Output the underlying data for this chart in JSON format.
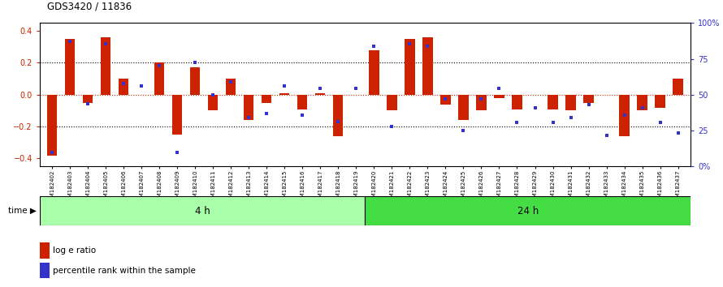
{
  "title": "GDS3420 / 11836",
  "samples": [
    "GSM182402",
    "GSM182403",
    "GSM182404",
    "GSM182405",
    "GSM182406",
    "GSM182407",
    "GSM182408",
    "GSM182409",
    "GSM182410",
    "GSM182411",
    "GSM182412",
    "GSM182413",
    "GSM182414",
    "GSM182415",
    "GSM182416",
    "GSM182417",
    "GSM182418",
    "GSM182419",
    "GSM182420",
    "GSM182421",
    "GSM182422",
    "GSM182423",
    "GSM182424",
    "GSM182425",
    "GSM182426",
    "GSM182427",
    "GSM182428",
    "GSM182429",
    "GSM182430",
    "GSM182431",
    "GSM182432",
    "GSM182433",
    "GSM182434",
    "GSM182435",
    "GSM182436",
    "GSM182437"
  ],
  "log_e_ratio": [
    -0.38,
    0.35,
    -0.05,
    0.36,
    0.1,
    0.0,
    0.2,
    -0.25,
    0.17,
    -0.1,
    0.1,
    -0.16,
    -0.05,
    0.01,
    -0.09,
    0.01,
    -0.26,
    0.0,
    0.28,
    -0.1,
    0.35,
    0.36,
    -0.06,
    -0.16,
    -0.1,
    -0.02,
    -0.09,
    0.0,
    -0.09,
    -0.1,
    -0.05,
    0.0,
    -0.26,
    -0.1,
    -0.08,
    0.1
  ],
  "percentile_rank": [
    5,
    92,
    43,
    90,
    59,
    57,
    73,
    5,
    75,
    50,
    60,
    32,
    35,
    57,
    34,
    55,
    29,
    55,
    88,
    25,
    90,
    88,
    47,
    22,
    47,
    55,
    28,
    40,
    28,
    32,
    42,
    18,
    34,
    40,
    28,
    20
  ],
  "group_boundary": 18,
  "groups": [
    "4 h",
    "24 h"
  ],
  "group_color_light": "#AAFFAA",
  "group_color_dark": "#44DD44",
  "bar_color": "#CC2200",
  "dot_color": "#3333CC",
  "ylim": [
    -0.45,
    0.45
  ],
  "yticks": [
    -0.4,
    -0.2,
    0.0,
    0.2,
    0.4
  ],
  "right_yticks": [
    0,
    25,
    50,
    75,
    100
  ],
  "right_yticklabels": [
    "0%",
    "25",
    "50",
    "75",
    "100%"
  ]
}
